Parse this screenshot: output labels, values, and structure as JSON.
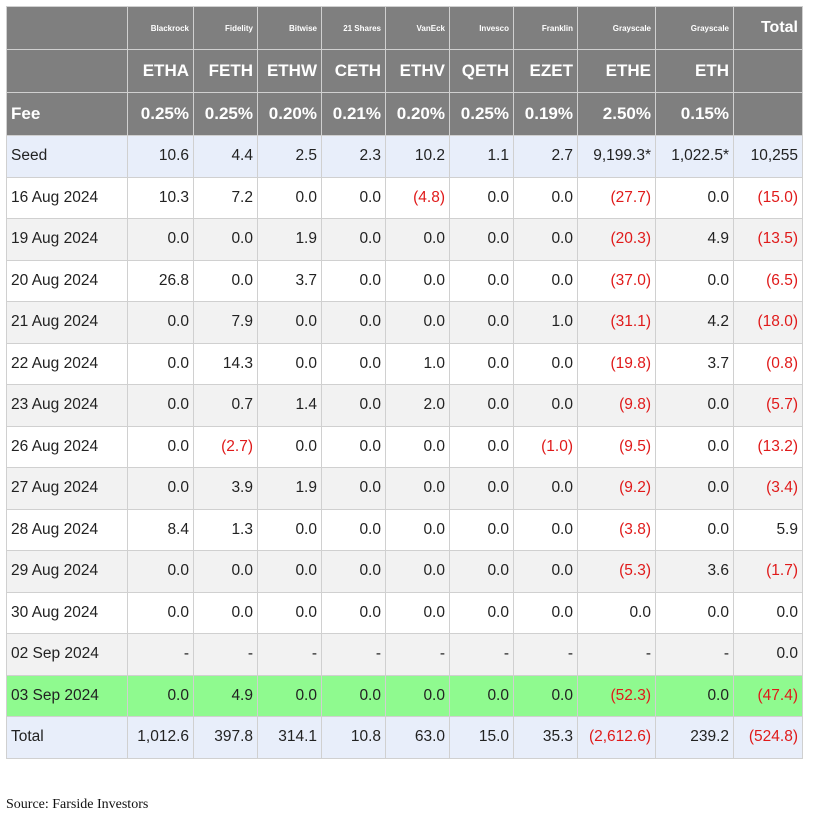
{
  "table": {
    "issuers": [
      "",
      "Blackrock",
      "Fidelity",
      "Bitwise",
      "21 Shares",
      "VanEck",
      "Invesco",
      "Franklin",
      "Grayscale",
      "Grayscale",
      "Total"
    ],
    "tickers": [
      "",
      "ETHA",
      "FETH",
      "ETHW",
      "CETH",
      "ETHV",
      "QETH",
      "EZET",
      "ETHE",
      "ETH",
      ""
    ],
    "fee_label": "Fee",
    "fees": [
      "0.25%",
      "0.25%",
      "0.20%",
      "0.21%",
      "0.20%",
      "0.25%",
      "0.19%",
      "2.50%",
      "0.15%",
      ""
    ],
    "rows": [
      {
        "label": "Seed",
        "values": [
          "10.6",
          "4.4",
          "2.5",
          "2.3",
          "10.2",
          "1.1",
          "2.7",
          "9,199.3*",
          "1,022.5*",
          "10,255"
        ]
      },
      {
        "label": "16 Aug 2024",
        "values": [
          "10.3",
          "7.2",
          "0.0",
          "0.0",
          "(4.8)",
          "0.0",
          "0.0",
          "(27.7)",
          "0.0",
          "(15.0)"
        ]
      },
      {
        "label": "19 Aug 2024",
        "values": [
          "0.0",
          "0.0",
          "1.9",
          "0.0",
          "0.0",
          "0.0",
          "0.0",
          "(20.3)",
          "4.9",
          "(13.5)"
        ]
      },
      {
        "label": "20 Aug 2024",
        "values": [
          "26.8",
          "0.0",
          "3.7",
          "0.0",
          "0.0",
          "0.0",
          "0.0",
          "(37.0)",
          "0.0",
          "(6.5)"
        ]
      },
      {
        "label": "21 Aug 2024",
        "values": [
          "0.0",
          "7.9",
          "0.0",
          "0.0",
          "0.0",
          "0.0",
          "1.0",
          "(31.1)",
          "4.2",
          "(18.0)"
        ]
      },
      {
        "label": "22 Aug 2024",
        "values": [
          "0.0",
          "14.3",
          "0.0",
          "0.0",
          "1.0",
          "0.0",
          "0.0",
          "(19.8)",
          "3.7",
          "(0.8)"
        ]
      },
      {
        "label": "23 Aug 2024",
        "values": [
          "0.0",
          "0.7",
          "1.4",
          "0.0",
          "2.0",
          "0.0",
          "0.0",
          "(9.8)",
          "0.0",
          "(5.7)"
        ]
      },
      {
        "label": "26 Aug 2024",
        "values": [
          "0.0",
          "(2.7)",
          "0.0",
          "0.0",
          "0.0",
          "0.0",
          "(1.0)",
          "(9.5)",
          "0.0",
          "(13.2)"
        ]
      },
      {
        "label": "27 Aug 2024",
        "values": [
          "0.0",
          "3.9",
          "1.9",
          "0.0",
          "0.0",
          "0.0",
          "0.0",
          "(9.2)",
          "0.0",
          "(3.4)"
        ]
      },
      {
        "label": "28 Aug 2024",
        "values": [
          "8.4",
          "1.3",
          "0.0",
          "0.0",
          "0.0",
          "0.0",
          "0.0",
          "(3.8)",
          "0.0",
          "5.9"
        ]
      },
      {
        "label": "29 Aug 2024",
        "values": [
          "0.0",
          "0.0",
          "0.0",
          "0.0",
          "0.0",
          "0.0",
          "0.0",
          "(5.3)",
          "3.6",
          "(1.7)"
        ]
      },
      {
        "label": "30 Aug 2024",
        "values": [
          "0.0",
          "0.0",
          "0.0",
          "0.0",
          "0.0",
          "0.0",
          "0.0",
          "0.0",
          "0.0",
          "0.0"
        ]
      },
      {
        "label": "02 Sep 2024",
        "values": [
          "-",
          "-",
          "-",
          "-",
          "-",
          "-",
          "-",
          "-",
          "-",
          "0.0"
        ]
      },
      {
        "label": "03 Sep 2024",
        "values": [
          "0.0",
          "4.9",
          "0.0",
          "0.0",
          "0.0",
          "0.0",
          "0.0",
          "(52.3)",
          "0.0",
          "(47.4)"
        ]
      },
      {
        "label": "Total",
        "values": [
          "1,012.6",
          "397.8",
          "314.1",
          "10.8",
          "63.0",
          "15.0",
          "35.3",
          "(2,612.6)",
          "239.2",
          "(524.8)"
        ]
      }
    ]
  },
  "colors": {
    "header_bg": "#7f7f7f",
    "negative": "#e01a1a",
    "highlight_row": "#8ffa8f",
    "seed_total_bg": "#e8eefa",
    "zebra": "#f2f2f2"
  },
  "source": "Source: Farside Investors"
}
